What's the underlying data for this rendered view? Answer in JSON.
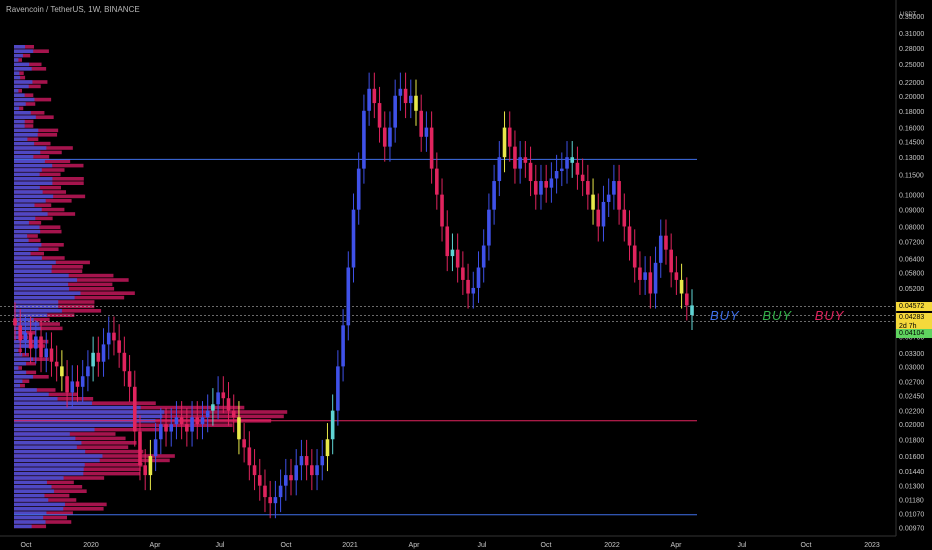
{
  "title": "Ravencoin / TetherUS, 1W, BINANCE",
  "currency": "USDT",
  "annotations": [
    {
      "text": "BUY",
      "color": "#3f6fe8"
    },
    {
      "text": "BUY",
      "color": "#34b24a"
    },
    {
      "text": "BUY",
      "color": "#e0245e"
    }
  ],
  "price_badges": [
    {
      "value": "0.04572",
      "color": "#f5d93b"
    },
    {
      "value": "0.04283",
      "color": "#f5d93b"
    },
    {
      "value": "2d 7h",
      "color": "#f5d93b"
    },
    {
      "value": "0.04104",
      "color": "#5fd35f"
    }
  ],
  "chart_data": {
    "type": "candlestick",
    "title": "Ravencoin / TetherUS, 1W, BINANCE",
    "y_scale": "log",
    "ylim": [
      0.0092,
      0.37
    ],
    "y_ticks": [
      "0.35000",
      "0.31000",
      "0.28000",
      "0.25000",
      "0.22000",
      "0.20000",
      "0.18000",
      "0.16000",
      "0.14500",
      "0.13000",
      "0.11500",
      "0.10000",
      "0.09000",
      "0.08000",
      "0.07200",
      "0.06400",
      "0.05800",
      "0.05200",
      "0.04572",
      "0.04283",
      "0.03700",
      "0.03300",
      "0.03000",
      "0.02700",
      "0.02450",
      "0.02200",
      "0.02000",
      "0.01800",
      "0.01600",
      "0.01440",
      "0.01300",
      "0.01180",
      "0.01070",
      "0.00970"
    ],
    "x_ticks": [
      "Oct",
      "2020",
      "Apr",
      "Jul",
      "Oct",
      "2021",
      "Apr",
      "Jul",
      "Oct",
      "2022",
      "Apr",
      "Jul",
      "Oct",
      "2023"
    ],
    "horizontal_levels": [
      {
        "price": 0.128,
        "color": "#3f6fe8"
      },
      {
        "price": 0.0205,
        "color": "#e0245e"
      },
      {
        "price": 0.0106,
        "color": "#3f6fe8"
      }
    ],
    "current_price": 0.04283,
    "candles_close": [
      0.04,
      0.036,
      0.038,
      0.034,
      0.037,
      0.032,
      0.034,
      0.031,
      0.03,
      0.028,
      0.025,
      0.027,
      0.026,
      0.028,
      0.03,
      0.033,
      0.031,
      0.035,
      0.038,
      0.036,
      0.033,
      0.029,
      0.026,
      0.019,
      0.015,
      0.014,
      0.016,
      0.018,
      0.02,
      0.019,
      0.02,
      0.021,
      0.02,
      0.019,
      0.021,
      0.02,
      0.021,
      0.022,
      0.023,
      0.025,
      0.024,
      0.022,
      0.021,
      0.018,
      0.017,
      0.015,
      0.014,
      0.013,
      0.012,
      0.0115,
      0.012,
      0.013,
      0.014,
      0.0135,
      0.015,
      0.016,
      0.015,
      0.014,
      0.015,
      0.016,
      0.018,
      0.022,
      0.03,
      0.04,
      0.06,
      0.09,
      0.12,
      0.18,
      0.21,
      0.19,
      0.16,
      0.14,
      0.16,
      0.2,
      0.21,
      0.19,
      0.2,
      0.18,
      0.15,
      0.16,
      0.12,
      0.1,
      0.08,
      0.065,
      0.068,
      0.06,
      0.055,
      0.05,
      0.052,
      0.06,
      0.07,
      0.09,
      0.11,
      0.13,
      0.16,
      0.14,
      0.12,
      0.13,
      0.125,
      0.11,
      0.1,
      0.11,
      0.105,
      0.112,
      0.118,
      0.12,
      0.13,
      0.125,
      0.115,
      0.11,
      0.1,
      0.09,
      0.08,
      0.095,
      0.1,
      0.11,
      0.09,
      0.08,
      0.07,
      0.06,
      0.055,
      0.058,
      0.05,
      0.062,
      0.075,
      0.068,
      0.058,
      0.055,
      0.05,
      0.046,
      0.043
    ]
  }
}
